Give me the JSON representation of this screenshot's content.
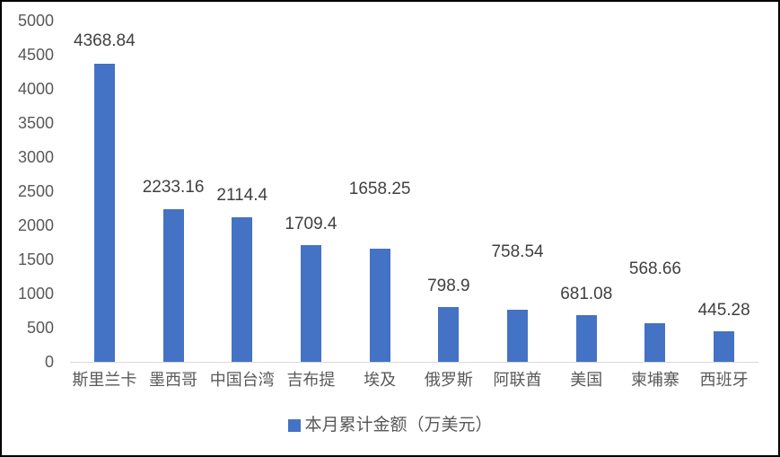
{
  "chart_data": {
    "type": "bar",
    "title": "",
    "legend": "本月累计金额（万美元）",
    "categories": [
      "斯里兰卡",
      "墨西哥",
      "中国台湾",
      "吉布提",
      "埃及",
      "俄罗斯",
      "阿联酋",
      "美国",
      "柬埔寨",
      "西班牙"
    ],
    "values": [
      4368.84,
      2233.16,
      2114.4,
      1709.4,
      1658.25,
      798.9,
      758.54,
      681.08,
      568.66,
      445.28
    ],
    "value_labels": [
      "4368.84",
      "2233.16",
      "2114.4",
      "1709.4",
      "1658.25",
      "798.9",
      "758.54",
      "681.08",
      "568.66",
      "445.28"
    ],
    "ylim": [
      0,
      5000
    ],
    "ytick_step": 500,
    "yticks": [
      5000,
      4500,
      4000,
      3500,
      3000,
      2500,
      2000,
      1500,
      1000,
      500,
      0
    ],
    "grid": false,
    "legend_position": "bottom-center",
    "bar_color": "#4472C4",
    "axis_line_color": "#D9D9D9",
    "tick_text_color": "#595959",
    "data_label_color": "#404040",
    "label_gaps": [
      14,
      13,
      13,
      12,
      55,
      12,
      53,
      12,
      49,
      12
    ]
  }
}
